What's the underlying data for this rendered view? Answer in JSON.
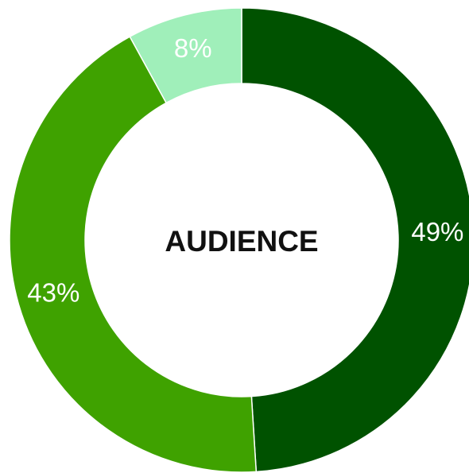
{
  "chart_data": {
    "type": "pie",
    "variant": "donut",
    "center_label": "AUDIENCE",
    "slices": [
      {
        "value": 49,
        "label": "49%",
        "color": "#005200"
      },
      {
        "value": 43,
        "label": "43%",
        "color": "#3fa200"
      },
      {
        "value": 8,
        "label": "8%",
        "color": "#a0efba"
      }
    ],
    "start": "top",
    "direction": "clockwise"
  }
}
